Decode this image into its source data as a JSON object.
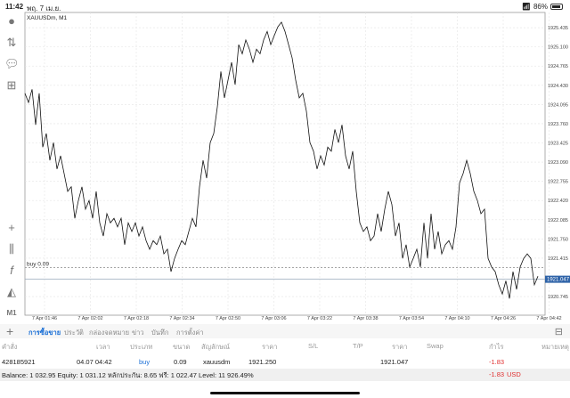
{
  "status_bar": {
    "time": "11:42",
    "date": "พฤ. 7 เม.ย.",
    "battery": "86%",
    "battery_level": 0.86
  },
  "chart": {
    "symbol_label": "XAUUSDm, M1",
    "buy_line_label": "buy 0.09",
    "buy_price": 1921.25,
    "current_price_label": "1921.047",
    "current_price": 1921.047,
    "colors": {
      "line": "#111111",
      "current_price_bg": "#2f63a8",
      "grid": "#e4e4e4"
    },
    "y_ticks": [
      "1925.435",
      "1925.100",
      "1924.765",
      "1924.430",
      "1924.095",
      "1923.760",
      "1923.425",
      "1923.090",
      "1922.755",
      "1922.420",
      "1922.085",
      "1921.750",
      "1921.415",
      "1920.745"
    ],
    "x_ticks": [
      "7 Apr 01:46",
      "7 Apr 02:02",
      "7 Apr 02:18",
      "7 Apr 02:34",
      "7 Apr 02:50",
      "7 Apr 03:06",
      "7 Apr 03:22",
      "7 Apr 03:38",
      "7 Apr 03:54",
      "7 Apr 04:10",
      "7 Apr 04:26",
      "7 Apr 04:42"
    ],
    "prices": [
      1924.29,
      1924.13,
      1924.36,
      1923.74,
      1924.29,
      1923.35,
      1923.59,
      1923.12,
      1923.43,
      1922.97,
      1923.2,
      1922.89,
      1922.58,
      1922.66,
      1922.11,
      1922.42,
      1922.66,
      1922.27,
      1922.42,
      1922.11,
      1922.58,
      1922.03,
      1921.8,
      1922.19,
      1922.03,
      1922.11,
      1921.96,
      1922.11,
      1921.65,
      1922.03,
      1921.88,
      1922.03,
      1921.8,
      1921.96,
      1921.72,
      1921.57,
      1921.72,
      1921.65,
      1921.8,
      1921.49,
      1921.57,
      1921.18,
      1921.41,
      1921.57,
      1921.72,
      1921.65,
      1921.88,
      1922.11,
      1921.96,
      1922.66,
      1923.12,
      1922.81,
      1923.43,
      1923.59,
      1924.05,
      1924.67,
      1924.21,
      1924.52,
      1924.83,
      1924.44,
      1925.14,
      1924.98,
      1925.22,
      1925.06,
      1924.83,
      1925.06,
      1924.98,
      1925.22,
      1925.37,
      1925.14,
      1925.3,
      1925.45,
      1925.53,
      1925.37,
      1925.14,
      1924.91,
      1924.52,
      1924.21,
      1924.29,
      1923.98,
      1923.43,
      1923.28,
      1922.97,
      1923.2,
      1923.04,
      1923.35,
      1923.28,
      1923.66,
      1923.43,
      1923.74,
      1923.2,
      1922.97,
      1923.28,
      1922.58,
      1922.03,
      1921.88,
      1921.96,
      1921.72,
      1921.8,
      1922.19,
      1921.88,
      1922.27,
      1922.58,
      1922.35,
      1921.8,
      1922.03,
      1921.41,
      1921.65,
      1921.26,
      1921.41,
      1921.57,
      1921.26,
      1922.03,
      1921.41,
      1922.19,
      1921.57,
      1921.88,
      1921.49,
      1921.65,
      1921.72,
      1921.57,
      1921.96,
      1922.73,
      1922.89,
      1923.12,
      1922.89,
      1922.58,
      1922.42,
      1922.19,
      1922.27,
      1921.41,
      1921.26,
      1921.18,
      1920.95,
      1920.79,
      1921.02,
      1920.71,
      1921.18,
      1920.87,
      1921.26,
      1921.41,
      1921.49,
      1921.41,
      1920.95,
      1921.1
    ],
    "y_range": [
      1920.42,
      1925.7
    ]
  },
  "left_toolbar": [
    "account-icon",
    "trade-arrows-icon",
    "chat-icon",
    "new-document-icon",
    "crosshair-icon",
    "candles-icon",
    "function-icon",
    "objects-icon"
  ],
  "timeframe": "M1",
  "panel": {
    "tabs": [
      "การซื้อขาย",
      "ประวัติ",
      "กล่องจดหมาย",
      "ข่าว",
      "บันทึก",
      "การตั้งค่า"
    ],
    "headers": [
      "คำสั่ง",
      "เวลา",
      "ประเภท",
      "ขนาด",
      "สัญลักษณ์",
      "ราคา",
      "S/L",
      "T/P",
      "ราคา",
      "Swap",
      "กำไร",
      "หมายเหตุ"
    ],
    "rows": [
      {
        "order": "428185921",
        "time": "04.07 04:42",
        "type": "buy",
        "size": "0.09",
        "symbol": "xauusdm",
        "open_price": "1921.250",
        "sl": "",
        "tp": "",
        "price": "1921.047",
        "swap": "",
        "profit": "-1.83",
        "comment": ""
      }
    ],
    "balance_text": "Balance: 1 032.95 Equity: 1 031.12 หลักประกัน: 8.65 ฟรี: 1 022.47 Level: 11 926.49%",
    "total_profit": "-1.83",
    "currency": "USD"
  }
}
